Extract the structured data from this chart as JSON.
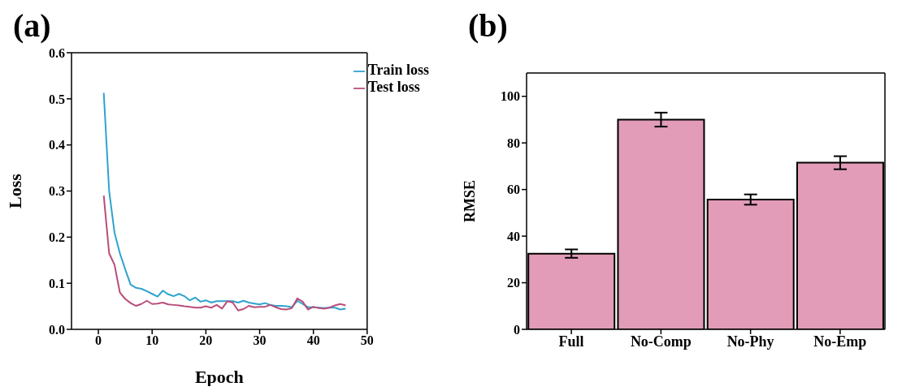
{
  "chart_data": [
    {
      "type": "line",
      "title": "(a)",
      "xlabel": "Epoch",
      "ylabel": "Loss",
      "x": [
        1,
        2,
        3,
        4,
        5,
        6,
        7,
        8,
        9,
        10,
        11,
        12,
        13,
        14,
        15,
        16,
        17,
        18,
        19,
        20,
        21,
        22,
        23,
        24,
        25,
        26,
        27,
        28,
        29,
        30,
        31,
        32,
        33,
        34,
        35,
        36,
        37,
        38,
        39,
        40,
        41,
        42,
        43,
        44,
        45,
        46
      ],
      "series": [
        {
          "name": "Train loss",
          "color": "#2ea3cf",
          "values": [
            0.513,
            0.3,
            0.21,
            0.165,
            0.13,
            0.097,
            0.09,
            0.088,
            0.083,
            0.077,
            0.071,
            0.084,
            0.076,
            0.072,
            0.077,
            0.072,
            0.063,
            0.069,
            0.06,
            0.063,
            0.058,
            0.061,
            0.061,
            0.061,
            0.061,
            0.058,
            0.062,
            0.058,
            0.056,
            0.054,
            0.057,
            0.053,
            0.051,
            0.051,
            0.05,
            0.048,
            0.062,
            0.055,
            0.048,
            0.048,
            0.047,
            0.046,
            0.047,
            0.047,
            0.043,
            0.045
          ]
        },
        {
          "name": "Test loss",
          "color": "#b94d7a",
          "values": [
            0.29,
            0.165,
            0.14,
            0.08,
            0.066,
            0.057,
            0.051,
            0.055,
            0.062,
            0.055,
            0.056,
            0.058,
            0.054,
            0.053,
            0.052,
            0.05,
            0.049,
            0.047,
            0.047,
            0.05,
            0.047,
            0.053,
            0.045,
            0.061,
            0.058,
            0.041,
            0.044,
            0.051,
            0.048,
            0.049,
            0.049,
            0.053,
            0.048,
            0.044,
            0.043,
            0.046,
            0.067,
            0.06,
            0.043,
            0.049,
            0.046,
            0.045,
            0.047,
            0.052,
            0.055,
            0.052
          ]
        }
      ],
      "xlim": [
        -5,
        50
      ],
      "xticks": [
        0,
        10,
        20,
        30,
        40,
        50
      ],
      "ylim": [
        0,
        0.6
      ],
      "yticks": [
        {
          "value": 0,
          "label": "0.0"
        },
        {
          "value": 0.1,
          "label": "0.1"
        },
        {
          "value": 0.2,
          "label": "0.2"
        },
        {
          "value": 0.3,
          "label": "0.3"
        },
        {
          "value": 0.4,
          "label": "0.4"
        },
        {
          "value": 0.5,
          "label": "0.5"
        },
        {
          "value": 0.6,
          "label": "0.6"
        }
      ],
      "legend": "top right",
      "marker": "none",
      "line_style": "solid"
    },
    {
      "type": "bar",
      "title": "(b)",
      "ylabel": "RMSE",
      "categories": [
        "Full",
        "No-Comp",
        "No-Phy",
        "No-Emp"
      ],
      "values": [
        32.5,
        90,
        55.7,
        71.5
      ],
      "errors": [
        1.8,
        3,
        2.2,
        2.8
      ],
      "color": "#e29cb8",
      "ylim": [
        0,
        110
      ],
      "yticks": [
        0,
        20,
        40,
        60,
        80,
        100
      ]
    }
  ]
}
